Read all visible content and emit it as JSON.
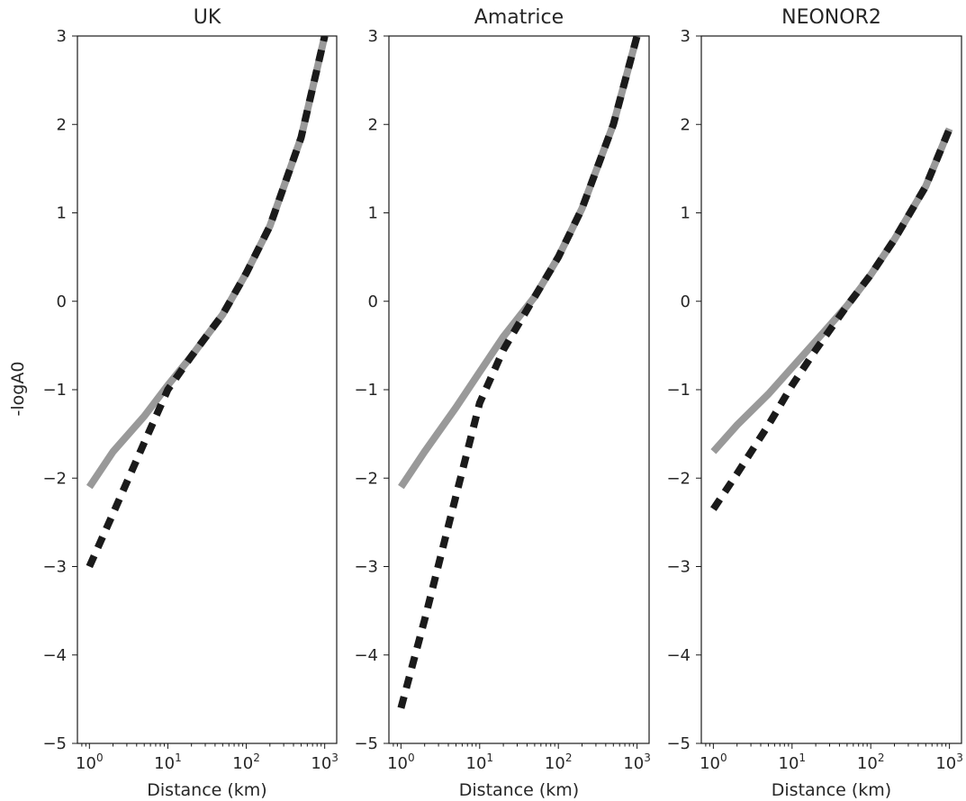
{
  "chart_data": [
    {
      "type": "line",
      "title": "UK",
      "xlabel": "Distance (km)",
      "ylabel": "-logA0",
      "xscale": "log",
      "xlim": [
        1,
        1000
      ],
      "ylim": [
        -5,
        3
      ],
      "x_ticks": [
        1,
        10,
        100,
        1000
      ],
      "x_tick_labels": [
        {
          "base": "10",
          "exp": "0"
        },
        {
          "base": "10",
          "exp": "1"
        },
        {
          "base": "10",
          "exp": "2"
        },
        {
          "base": "10",
          "exp": "3"
        }
      ],
      "y_ticks": [
        -5,
        -4,
        -3,
        -2,
        -1,
        0,
        1,
        2,
        3
      ],
      "y_tick_labels": [
        "−5",
        "−4",
        "−3",
        "−2",
        "−1",
        "0",
        "1",
        "2",
        "3"
      ],
      "series": [
        {
          "style": "solid",
          "color": "#999999",
          "x": [
            1,
            2,
            5,
            10,
            20,
            50,
            100,
            200,
            500,
            1000
          ],
          "y": [
            -2.1,
            -1.7,
            -1.3,
            -0.95,
            -0.62,
            -0.15,
            0.32,
            0.85,
            1.85,
            3.0
          ]
        },
        {
          "style": "dashed",
          "color": "#1a1a1a",
          "x": [
            1,
            2,
            5,
            10,
            20,
            50,
            100,
            200,
            500,
            1000
          ],
          "y": [
            -3.0,
            -2.4,
            -1.6,
            -1.0,
            -0.62,
            -0.15,
            0.32,
            0.85,
            1.85,
            3.0
          ]
        }
      ]
    },
    {
      "type": "line",
      "title": "Amatrice",
      "xlabel": "Distance (km)",
      "ylabel": "",
      "xscale": "log",
      "xlim": [
        1,
        1000
      ],
      "ylim": [
        -5,
        3
      ],
      "x_ticks": [
        1,
        10,
        100,
        1000
      ],
      "x_tick_labels": [
        {
          "base": "10",
          "exp": "0"
        },
        {
          "base": "10",
          "exp": "1"
        },
        {
          "base": "10",
          "exp": "2"
        },
        {
          "base": "10",
          "exp": "3"
        }
      ],
      "y_ticks": [
        -5,
        -4,
        -3,
        -2,
        -1,
        0,
        1,
        2,
        3
      ],
      "y_tick_labels": [
        "−5",
        "−4",
        "−3",
        "−2",
        "−1",
        "0",
        "1",
        "2",
        "3"
      ],
      "series": [
        {
          "style": "solid",
          "color": "#999999",
          "x": [
            1,
            2,
            5,
            10,
            20,
            50,
            100,
            200,
            500,
            1000
          ],
          "y": [
            -2.1,
            -1.7,
            -1.2,
            -0.8,
            -0.4,
            0.05,
            0.5,
            1.05,
            2.0,
            3.0
          ]
        },
        {
          "style": "dashed",
          "color": "#1a1a1a",
          "x": [
            1,
            2,
            5,
            10,
            15,
            20,
            50,
            100,
            200,
            500,
            1000
          ],
          "y": [
            -4.6,
            -3.6,
            -2.2,
            -1.15,
            -0.8,
            -0.55,
            0.05,
            0.5,
            1.05,
            2.0,
            3.0
          ]
        }
      ]
    },
    {
      "type": "line",
      "title": "NEONOR2",
      "xlabel": "Distance (km)",
      "ylabel": "",
      "xscale": "log",
      "xlim": [
        1,
        1000
      ],
      "ylim": [
        -5,
        3
      ],
      "x_ticks": [
        1,
        10,
        100,
        1000
      ],
      "x_tick_labels": [
        {
          "base": "10",
          "exp": "0"
        },
        {
          "base": "10",
          "exp": "1"
        },
        {
          "base": "10",
          "exp": "2"
        },
        {
          "base": "10",
          "exp": "3"
        }
      ],
      "y_ticks": [
        -5,
        -4,
        -3,
        -2,
        -1,
        0,
        1,
        2,
        3
      ],
      "y_tick_labels": [
        "−5",
        "−4",
        "−3",
        "−2",
        "−1",
        "0",
        "1",
        "2",
        "3"
      ],
      "series": [
        {
          "style": "solid",
          "color": "#999999",
          "x": [
            1,
            2,
            5,
            10,
            20,
            50,
            100,
            200,
            500,
            1000
          ],
          "y": [
            -1.7,
            -1.4,
            -1.05,
            -0.75,
            -0.45,
            -0.05,
            0.3,
            0.7,
            1.3,
            1.95
          ]
        },
        {
          "style": "dashed",
          "color": "#1a1a1a",
          "x": [
            1,
            2,
            5,
            10,
            20,
            50,
            100,
            200,
            500,
            1000
          ],
          "y": [
            -2.35,
            -1.95,
            -1.4,
            -0.95,
            -0.55,
            -0.05,
            0.3,
            0.7,
            1.3,
            1.95
          ]
        }
      ]
    }
  ]
}
